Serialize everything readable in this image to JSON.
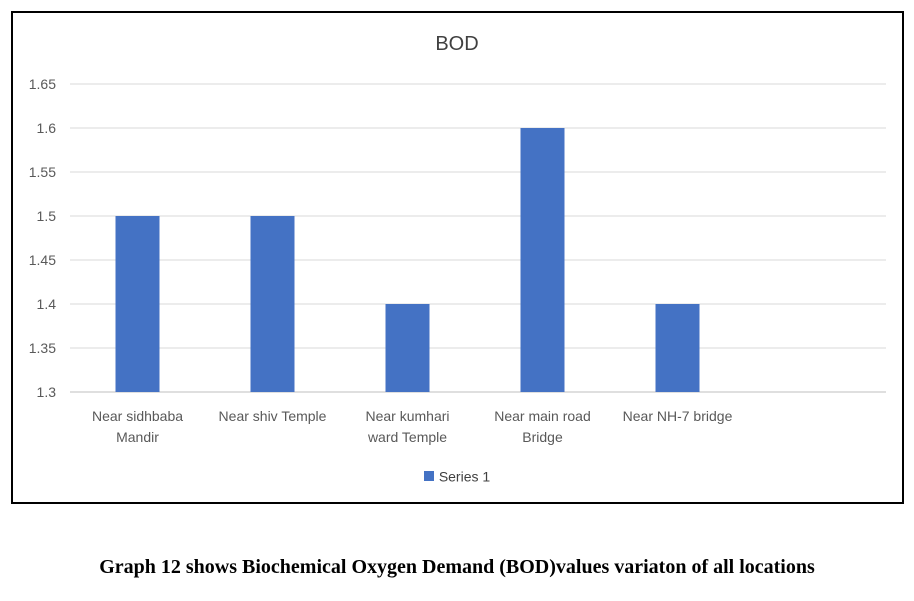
{
  "chart_data": {
    "type": "bar",
    "title": "BOD",
    "xlabel": "",
    "ylabel": "",
    "categories": [
      [
        "Near sidhbaba",
        "Mandir"
      ],
      [
        "Near shiv Temple"
      ],
      [
        "Near kumhari",
        "ward Temple"
      ],
      [
        "Near main road",
        "Bridge"
      ],
      [
        "Near NH-7 bridge"
      ]
    ],
    "series": [
      {
        "name": "Series 1",
        "color": "#4472C4",
        "values": [
          1.5,
          1.5,
          1.4,
          1.6,
          1.4
        ]
      }
    ],
    "ylim": [
      1.3,
      1.65
    ],
    "yticks": [
      "1.3",
      "1.35",
      "1.4",
      "1.45",
      "1.5",
      "1.55",
      "1.6",
      "1.65"
    ],
    "grid": true,
    "legend": "bottom"
  },
  "caption": "Graph 12 shows Biochemical Oxygen Demand (BOD)values variaton of all locations"
}
